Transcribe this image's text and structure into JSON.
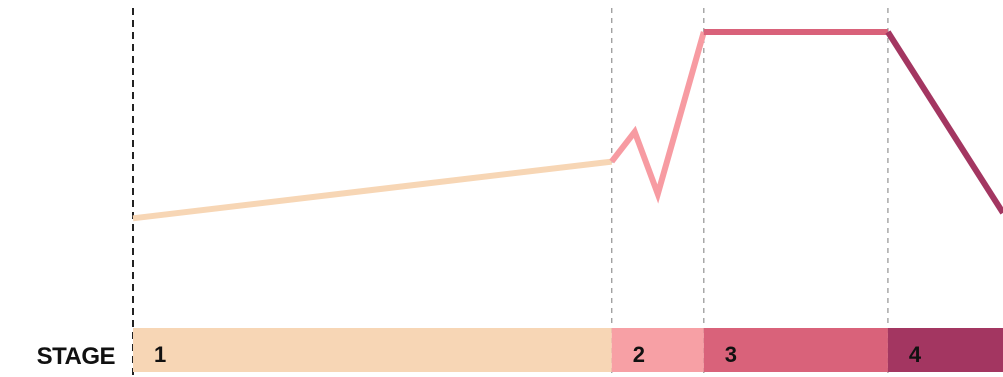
{
  "chart_data": {
    "type": "line",
    "title": "",
    "xlabel": "",
    "ylabel": "",
    "grid": false,
    "stage_label": "STAGE",
    "stages": [
      {
        "label": "1",
        "start": 0,
        "end": 52,
        "color": "#f7d6b5"
      },
      {
        "label": "2",
        "start": 52,
        "end": 62,
        "color": "#f7a0a5"
      },
      {
        "label": "3",
        "start": 62,
        "end": 82,
        "color": "#d9627a"
      },
      {
        "label": "4",
        "start": 82,
        "end": 94.5,
        "color": "#a33661"
      }
    ],
    "series": [
      {
        "stage": "1",
        "color": "#f7d6b5",
        "points": [
          [
            0,
            31
          ],
          [
            52,
            52
          ]
        ]
      },
      {
        "stage": "2",
        "color": "#f79ba2",
        "points": [
          [
            52,
            52
          ],
          [
            54.5,
            63
          ],
          [
            57,
            40
          ],
          [
            62,
            100
          ]
        ]
      },
      {
        "stage": "3",
        "color": "#d9627a",
        "points": [
          [
            62,
            100
          ],
          [
            82,
            100
          ]
        ]
      },
      {
        "stage": "4",
        "color": "#a33661",
        "points": [
          [
            82,
            100
          ],
          [
            94.5,
            33
          ]
        ]
      }
    ],
    "xlim": [
      0,
      94.5
    ],
    "ylim": [
      0,
      100
    ]
  }
}
